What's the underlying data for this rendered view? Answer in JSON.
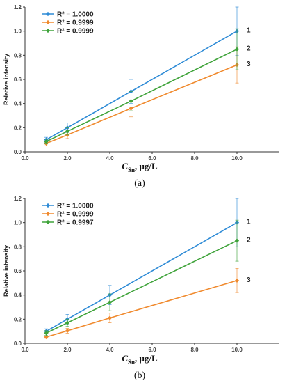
{
  "colors": {
    "s1": "#2E8BD6",
    "s2": "#F08A2E",
    "s3": "#3FA33A",
    "axis": "#333333",
    "grid": "#999999"
  },
  "chart_data": [
    {
      "type": "line",
      "caption": "(a)",
      "xlabel_main": "C",
      "xlabel_sub": "Sn",
      "xlabel_rest": ", μg/L",
      "ylabel": "Relative intensity",
      "xlim": [
        0,
        12
      ],
      "ylim": [
        0,
        1.2
      ],
      "xticks": [
        "0.0",
        "2.0",
        "4.0",
        "6.0",
        "8.0",
        "10.0"
      ],
      "yticks": [
        "0.0",
        "0.2",
        "0.4",
        "0.6",
        "0.8",
        "1.0",
        "1.2"
      ],
      "x": [
        1,
        2,
        5,
        10
      ],
      "series": [
        {
          "name": "R² = 1.0000",
          "label": "1",
          "values": [
            0.1,
            0.2,
            0.5,
            1.0
          ],
          "err": [
            0.02,
            0.04,
            0.1,
            0.2
          ]
        },
        {
          "name": "R² = 0.9999",
          "label": "3",
          "values": [
            0.07,
            0.14,
            0.36,
            0.72
          ],
          "err": [
            0.02,
            0.03,
            0.07,
            0.15
          ]
        },
        {
          "name": "R² = 0.9999",
          "label": "2",
          "values": [
            0.085,
            0.17,
            0.42,
            0.85
          ],
          "err": [
            0.02,
            0.03,
            0.08,
            0.17
          ]
        }
      ]
    },
    {
      "type": "line",
      "caption": "(b)",
      "xlabel_main": "C",
      "xlabel_sub": "Sn",
      "xlabel_rest": ", μg/L",
      "ylabel": "Relative intensity",
      "xlim": [
        0,
        12
      ],
      "ylim": [
        0,
        1.2
      ],
      "xticks": [
        "0.0",
        "2.0",
        "4.0",
        "6.0",
        "8.0",
        "10.0"
      ],
      "yticks": [
        "0.0",
        "0.2",
        "0.4",
        "0.6",
        "0.8",
        "1.0",
        "1.2"
      ],
      "x": [
        1,
        2,
        4,
        10
      ],
      "series": [
        {
          "name": "R² = 1.0000",
          "label": "1",
          "values": [
            0.1,
            0.2,
            0.4,
            1.0
          ],
          "err": [
            0.02,
            0.04,
            0.08,
            0.2
          ]
        },
        {
          "name": "R² = 0.9999",
          "label": "3",
          "values": [
            0.052,
            0.104,
            0.21,
            0.52
          ],
          "err": [
            0.01,
            0.02,
            0.04,
            0.1
          ]
        },
        {
          "name": "R² = 0.9997",
          "label": "2",
          "values": [
            0.085,
            0.17,
            0.34,
            0.85
          ],
          "err": [
            0.02,
            0.03,
            0.07,
            0.17
          ]
        }
      ]
    }
  ]
}
